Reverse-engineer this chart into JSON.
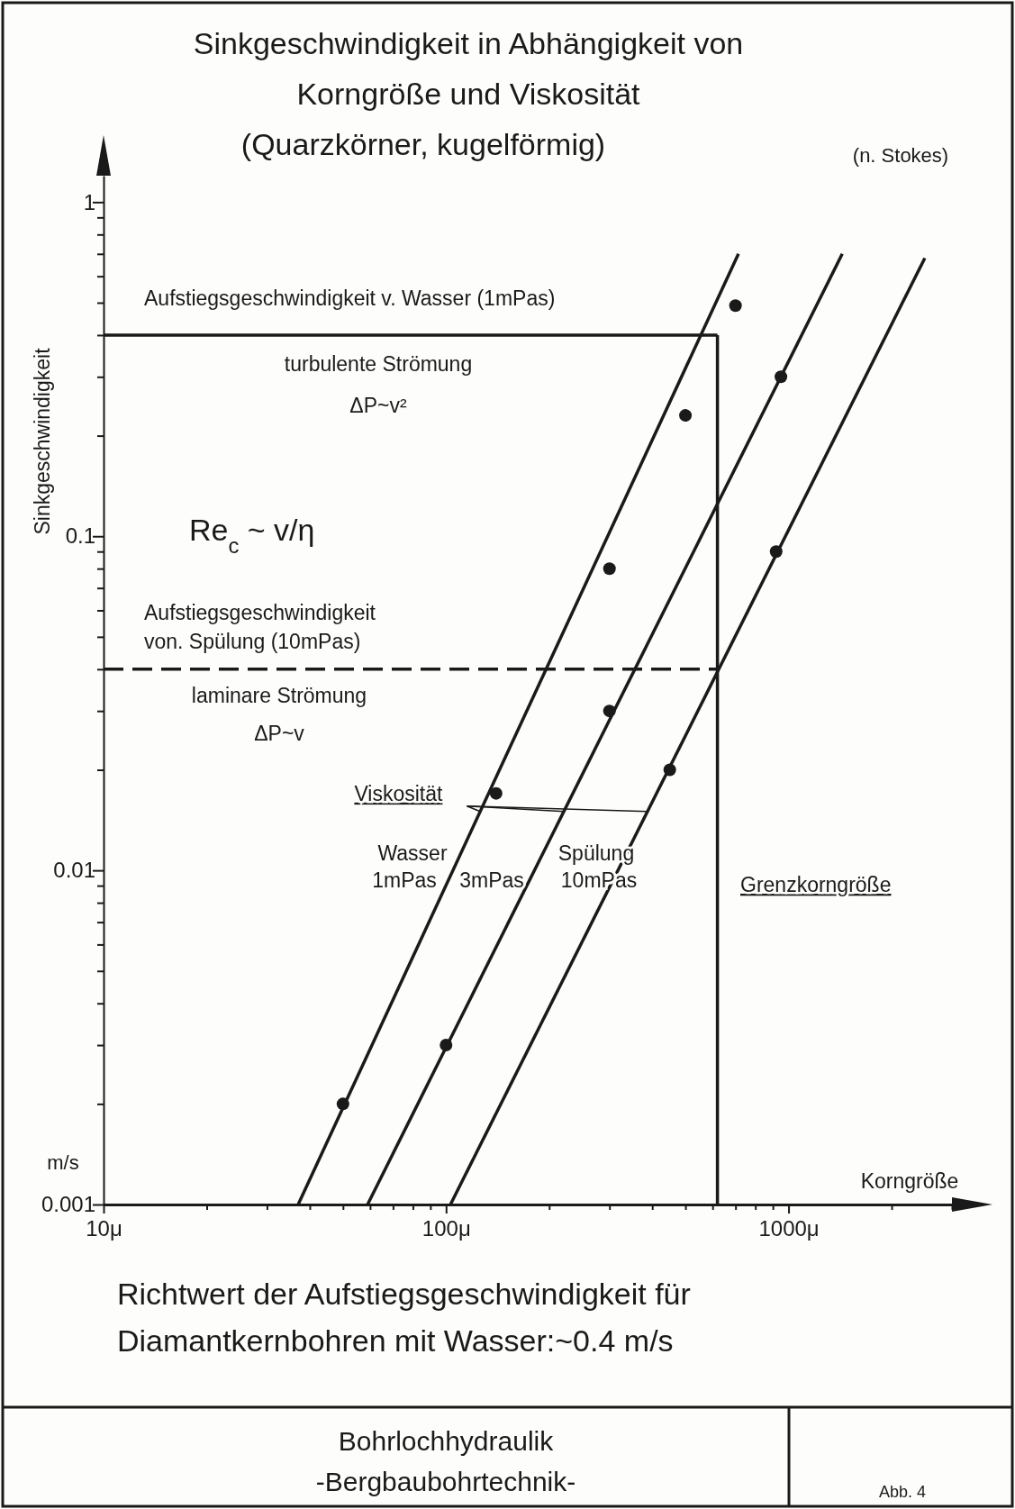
{
  "chart_data": {
    "type": "line",
    "title": "Sinkgeschwindigkeit in Abhängigkeit von Korngröße und Viskosität",
    "subtitle": "(Quarzkörner, kugelförmig)",
    "xlabel": "Korngröße",
    "ylabel": "Sinkgeschwindigkeit",
    "log": "xy",
    "grid": false,
    "legend": false,
    "xlim": [
      10,
      3000
    ],
    "ylim": [
      0.001,
      1.2
    ],
    "xticks": [
      {
        "value": 10,
        "label": "10μ"
      },
      {
        "value": 20,
        "label": null
      },
      {
        "value": 30,
        "label": null
      },
      {
        "value": 40,
        "label": null
      },
      {
        "value": 50,
        "label": null
      },
      {
        "value": 60,
        "label": null
      },
      {
        "value": 70,
        "label": null
      },
      {
        "value": 80,
        "label": null
      },
      {
        "value": 90,
        "label": null
      },
      {
        "value": 100,
        "label": "100μ"
      },
      {
        "value": 200,
        "label": null
      },
      {
        "value": 300,
        "label": null
      },
      {
        "value": 400,
        "label": null
      },
      {
        "value": 500,
        "label": null
      },
      {
        "value": 600,
        "label": null
      },
      {
        "value": 700,
        "label": null
      },
      {
        "value": 800,
        "label": null
      },
      {
        "value": 900,
        "label": null
      },
      {
        "value": 1000,
        "label": "1000μ"
      },
      {
        "value": 2000,
        "label": null
      },
      {
        "value": 3000,
        "label": null
      }
    ],
    "yticks": [
      0.001,
      {
        "value": 0.002,
        "label": null
      },
      {
        "value": 0.003,
        "label": null
      },
      {
        "value": 0.004,
        "label": null
      },
      {
        "value": 0.005,
        "label": null
      },
      {
        "value": 0.006,
        "label": null
      },
      {
        "value": 0.007,
        "label": null
      },
      {
        "value": 0.008,
        "label": null
      },
      {
        "value": 0.009,
        "label": null
      },
      0.01,
      {
        "value": 0.02,
        "label": null
      },
      {
        "value": 0.03,
        "label": null
      },
      {
        "value": 0.04,
        "label": null
      },
      {
        "value": 0.05,
        "label": null
      },
      {
        "value": 0.06,
        "label": null
      },
      {
        "value": 0.07,
        "label": null
      },
      {
        "value": 0.08,
        "label": null
      },
      {
        "value": 0.09,
        "label": null
      },
      0.1,
      {
        "value": 0.2,
        "label": null
      },
      {
        "value": 0.3,
        "label": null
      },
      {
        "value": 0.4,
        "label": null
      },
      {
        "value": 0.5,
        "label": null
      },
      {
        "value": 0.6,
        "label": null
      },
      {
        "value": 0.7,
        "label": null
      },
      {
        "value": 0.8,
        "label": null
      },
      {
        "value": 0.9,
        "label": null
      },
      1
    ],
    "series": [
      {
        "name": "1mPas",
        "color": "#1a1a1a",
        "x": [
          37,
          714
        ],
        "values": [
          0.001,
          0.7
        ]
      },
      {
        "name": "3mPas",
        "color": "#1a1a1a",
        "x": [
          59,
          1435
        ],
        "values": [
          0.001,
          0.7
        ]
      },
      {
        "name": "10mPas",
        "color": "#1a1a1a",
        "x": [
          103,
          2500
        ],
        "values": [
          0.001,
          0.68
        ]
      },
      {
        "type": "scatter",
        "marker": "circle",
        "color": "#1a1a1a",
        "x": [
          50,
          140,
          300,
          500,
          700,
          100,
          300,
          950,
          450,
          920
        ],
        "values": [
          0.002,
          0.017,
          0.08,
          0.23,
          0.49,
          0.003,
          0.03,
          0.3,
          0.02,
          0.09
        ]
      },
      {
        "color": "#1a1a1a",
        "x": [
          10,
          620
        ],
        "values": [
          0.4,
          0.4
        ]
      },
      {
        "color": "#1a1a1a",
        "line_style": "dashed",
        "x": [
          10,
          620
        ],
        "values": [
          0.04,
          0.04
        ]
      },
      {
        "color": "#1a1a1a",
        "x": [
          620,
          620
        ],
        "values": [
          0.001,
          0.4
        ]
      }
    ],
    "annotations": [
      "(n. Stokes)",
      "Aufstiegsgeschwindigkeit v. Wasser (1mPas)",
      "turbulente Strömung",
      "ΔP~v²",
      "Re$_{c}$ ~ v/η",
      "Aufstiegsgeschwindigkeit von. Spülung (10mPas)",
      "laminare Strömung",
      "ΔP~v",
      {
        "text": "Viskosität",
        "x": 126,
        "y": 0.015
      },
      "Wasser",
      "Spülung",
      "Grenzkorngröße",
      "m/s",
      "Richtwert der Aufstiegsgeschwindigkeit für Diamantkernbohren mit Wasser:~0.4 m/s",
      "Bohrlochhydraulik",
      "-Bergbaubohrtechnik-",
      "Abb. 4"
    ]
  }
}
